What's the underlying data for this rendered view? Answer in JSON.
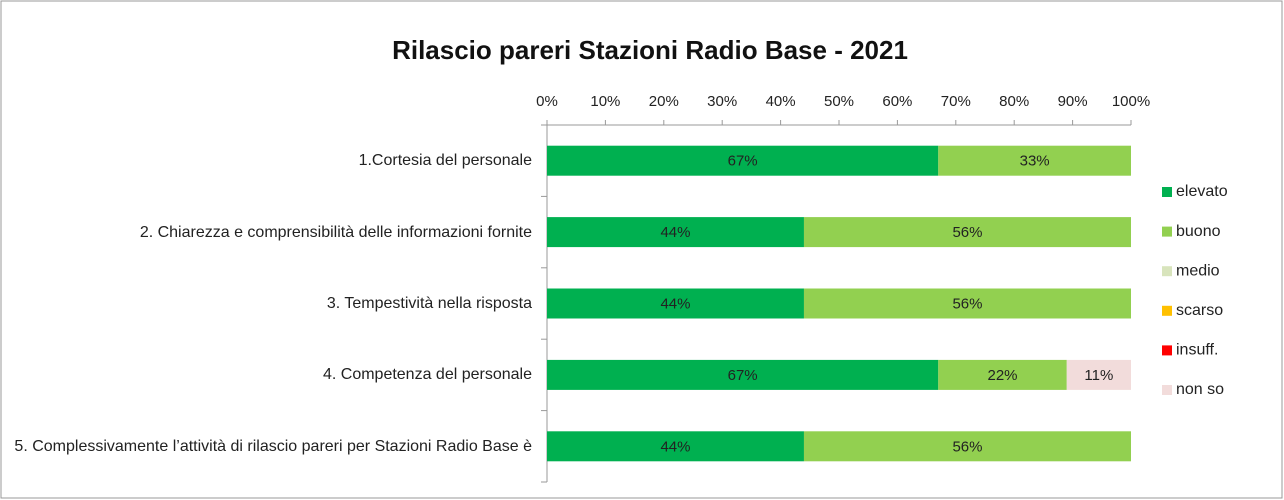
{
  "chart_data": {
    "type": "stacked_bar_horizontal",
    "title": "Rilascio pareri Stazioni Radio Base - 2021",
    "categories": [
      "1.Cortesia del personale",
      "2. Chiarezza e comprensibilità delle informazioni fornite",
      "3. Tempestività nella risposta",
      "4. Competenza del personale",
      "5. Complessivamente l’attività di rilascio pareri per Stazioni Radio Base è"
    ],
    "series": [
      {
        "name": "elevato",
        "color": "#00b050",
        "values": [
          67,
          44,
          44,
          67,
          44
        ],
        "value_labels": [
          "67%",
          "44%",
          "44%",
          "67%",
          "44%"
        ]
      },
      {
        "name": "buono",
        "color": "#92d050",
        "values": [
          33,
          56,
          56,
          22,
          56
        ],
        "value_labels": [
          "33%",
          "56%",
          "56%",
          "22%",
          "56%"
        ]
      },
      {
        "name": "medio",
        "color": "#d8e4bc",
        "values": [
          0,
          0,
          0,
          0,
          0
        ]
      },
      {
        "name": "scarso",
        "color": "#ffc000",
        "values": [
          0,
          0,
          0,
          0,
          0
        ]
      },
      {
        "name": "insuff.",
        "color": "#ff0000",
        "values": [
          0,
          0,
          0,
          0,
          0
        ]
      },
      {
        "name": "non so",
        "color": "#f2dcdb",
        "values": [
          0,
          0,
          0,
          11,
          0
        ],
        "value_labels": [
          null,
          null,
          null,
          "11%",
          null
        ]
      }
    ],
    "xlim": [
      0,
      100
    ],
    "xticks": [
      {
        "value": 0,
        "label": "0%"
      },
      {
        "value": 10,
        "label": "10%"
      },
      {
        "value": 20,
        "label": "20%"
      },
      {
        "value": 30,
        "label": "30%"
      },
      {
        "value": 40,
        "label": "40%"
      },
      {
        "value": 50,
        "label": "50%"
      },
      {
        "value": 60,
        "label": "60%"
      },
      {
        "value": 70,
        "label": "70%"
      },
      {
        "value": 80,
        "label": "80%"
      },
      {
        "value": 90,
        "label": "90%"
      },
      {
        "value": 100,
        "label": "100%"
      }
    ],
    "legend": "right"
  }
}
